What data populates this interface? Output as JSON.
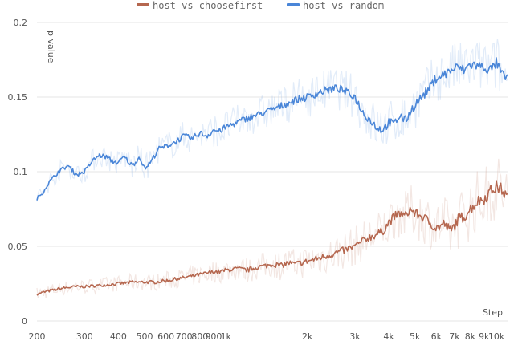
{
  "chart_data": {
    "type": "line",
    "xscale": "log",
    "ylabel": "p value",
    "xlabel": "Step",
    "xlim": [
      200,
      11000
    ],
    "ylim": [
      0,
      0.2
    ],
    "grid": "horizontal",
    "legend_position": "top-center",
    "x_ticks": [
      200,
      300,
      400,
      500,
      600,
      700,
      800,
      900,
      1000,
      2000,
      3000,
      4000,
      5000,
      6000,
      7000,
      8000,
      9000,
      10000
    ],
    "x_tick_labels": [
      "200",
      "300",
      "400",
      "500",
      "600",
      "700",
      "800",
      "900",
      "1k",
      "2k",
      "3k",
      "4k",
      "5k",
      "6k",
      "7k",
      "8k",
      "9k",
      "10k"
    ],
    "y_ticks": [
      0,
      0.05,
      0.1,
      0.15,
      0.2
    ],
    "y_tick_labels": [
      "0",
      "0.05",
      "0.1",
      "0.15",
      "0.2"
    ],
    "series": [
      {
        "name": "host vs choosefirst",
        "color": "#b5674f",
        "x": [
          200,
          220,
          250,
          280,
          300,
          350,
          400,
          450,
          500,
          550,
          600,
          650,
          700,
          750,
          800,
          850,
          900,
          950,
          1000,
          1100,
          1200,
          1300,
          1400,
          1500,
          1600,
          1700,
          1800,
          2000,
          2200,
          2400,
          2600,
          2800,
          3000,
          3300,
          3600,
          3800,
          4000,
          4200,
          4400,
          4600,
          4800,
          5000,
          5300,
          5600,
          6000,
          6400,
          6800,
          7200,
          7600,
          8000,
          8500,
          9000,
          9500,
          10000,
          10500,
          11000
        ],
        "y": [
          0.018,
          0.02,
          0.022,
          0.023,
          0.023,
          0.024,
          0.025,
          0.026,
          0.026,
          0.026,
          0.027,
          0.028,
          0.029,
          0.03,
          0.031,
          0.032,
          0.033,
          0.033,
          0.034,
          0.035,
          0.034,
          0.036,
          0.037,
          0.038,
          0.037,
          0.039,
          0.038,
          0.04,
          0.042,
          0.044,
          0.046,
          0.048,
          0.05,
          0.055,
          0.058,
          0.06,
          0.066,
          0.07,
          0.072,
          0.07,
          0.075,
          0.072,
          0.07,
          0.067,
          0.062,
          0.065,
          0.06,
          0.068,
          0.07,
          0.075,
          0.08,
          0.082,
          0.087,
          0.09,
          0.088,
          0.082
        ]
      },
      {
        "name": "host vs random",
        "color": "#4a86d8",
        "x": [
          200,
          210,
          220,
          240,
          260,
          280,
          300,
          320,
          340,
          360,
          380,
          400,
          420,
          450,
          480,
          500,
          530,
          560,
          600,
          650,
          700,
          750,
          800,
          850,
          900,
          950,
          1000,
          1100,
          1200,
          1300,
          1400,
          1500,
          1600,
          1800,
          2000,
          2200,
          2400,
          2600,
          2800,
          3000,
          3200,
          3400,
          3600,
          3800,
          4000,
          4200,
          4400,
          4600,
          4800,
          5000,
          5300,
          5600,
          6000,
          6400,
          6800,
          7200,
          7600,
          8000,
          8500,
          9000,
          9500,
          10000,
          10500,
          11000
        ],
        "y": [
          0.082,
          0.086,
          0.092,
          0.1,
          0.104,
          0.098,
          0.1,
          0.107,
          0.111,
          0.11,
          0.107,
          0.106,
          0.11,
          0.104,
          0.11,
          0.102,
          0.107,
          0.115,
          0.117,
          0.12,
          0.124,
          0.122,
          0.126,
          0.124,
          0.128,
          0.127,
          0.13,
          0.133,
          0.136,
          0.138,
          0.14,
          0.142,
          0.144,
          0.148,
          0.15,
          0.153,
          0.155,
          0.156,
          0.153,
          0.15,
          0.14,
          0.135,
          0.13,
          0.128,
          0.133,
          0.132,
          0.138,
          0.134,
          0.14,
          0.145,
          0.15,
          0.155,
          0.163,
          0.165,
          0.168,
          0.17,
          0.168,
          0.172,
          0.171,
          0.17,
          0.168,
          0.173,
          0.165,
          0.162
        ]
      }
    ]
  }
}
